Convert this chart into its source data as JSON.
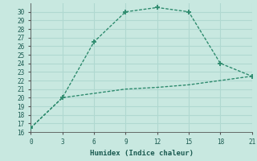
{
  "title": "",
  "xlabel": "Humidex (Indice chaleur)",
  "x": [
    0,
    3,
    6,
    9,
    12,
    15,
    18,
    21
  ],
  "line1_y": [
    16.5,
    20,
    26.5,
    30,
    30.5,
    30,
    24,
    22.5
  ],
  "line2_y": [
    16.5,
    20,
    20.5,
    21,
    21.2,
    21.5,
    22.0,
    22.5
  ],
  "line_color": "#2e8b6e",
  "bg_color": "#c8e8e0",
  "grid_color": "#b0d8d0",
  "ylim": [
    16,
    31
  ],
  "xlim": [
    0,
    21
  ],
  "yticks": [
    16,
    17,
    18,
    19,
    20,
    21,
    22,
    23,
    24,
    25,
    26,
    27,
    28,
    29,
    30
  ],
  "xticks": [
    0,
    3,
    6,
    9,
    12,
    15,
    18,
    21
  ]
}
